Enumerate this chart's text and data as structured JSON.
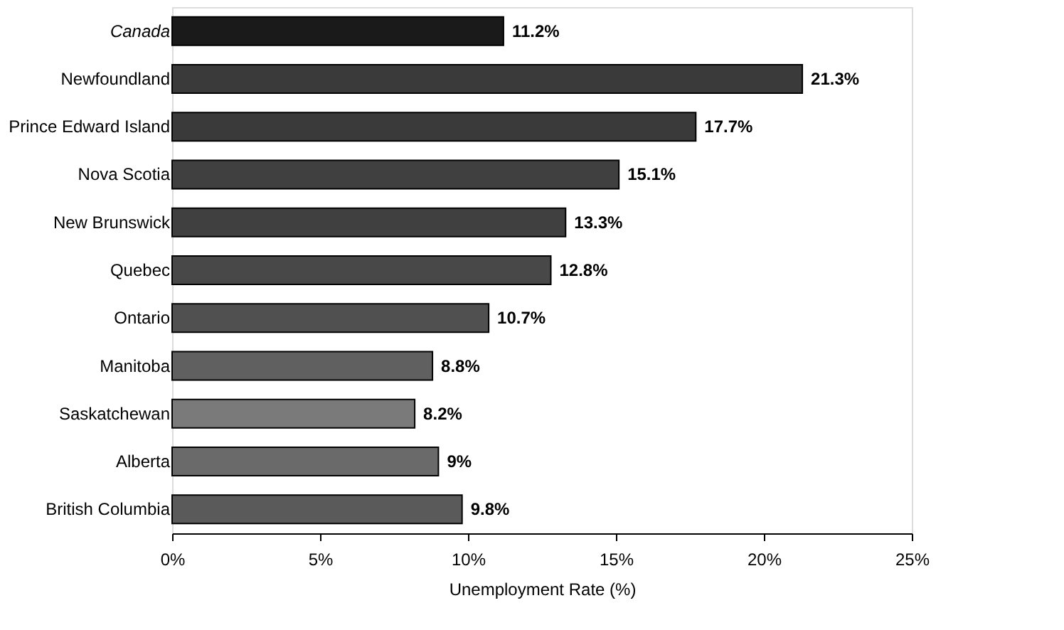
{
  "chart_data": {
    "type": "bar",
    "orientation": "horizontal",
    "xlabel": "Unemployment Rate (%)",
    "categories": [
      "Canada",
      "Newfoundland",
      "Prince Edward Island",
      "Nova Scotia",
      "New Brunswick",
      "Quebec",
      "Ontario",
      "Manitoba",
      "Saskatchewan",
      "Alberta",
      "British Columbia"
    ],
    "values": [
      11.2,
      21.3,
      17.7,
      15.1,
      13.3,
      12.8,
      10.7,
      8.8,
      8.2,
      9,
      9.8
    ],
    "value_labels": [
      "11.2%",
      "21.3%",
      "17.7%",
      "15.1%",
      "13.3%",
      "12.8%",
      "10.7%",
      "8.8%",
      "8.2%",
      "9%",
      "9.8%"
    ],
    "colors": [
      "#1a1a1a",
      "#3a3a3a",
      "#3a3a3a",
      "#404040",
      "#404040",
      "#484848",
      "#505050",
      "#606060",
      "#7a7a7a",
      "#6a6a6a",
      "#5a5a5a"
    ],
    "xlim": [
      0,
      25
    ],
    "xticks": [
      {
        "value": 0,
        "label": "0%"
      },
      {
        "value": 5,
        "label": "5%"
      },
      {
        "value": 10,
        "label": "10%"
      },
      {
        "value": 15,
        "label": "15%"
      },
      {
        "value": 20,
        "label": "20%"
      },
      {
        "value": 25,
        "label": "25%"
      }
    ],
    "grid": false
  }
}
